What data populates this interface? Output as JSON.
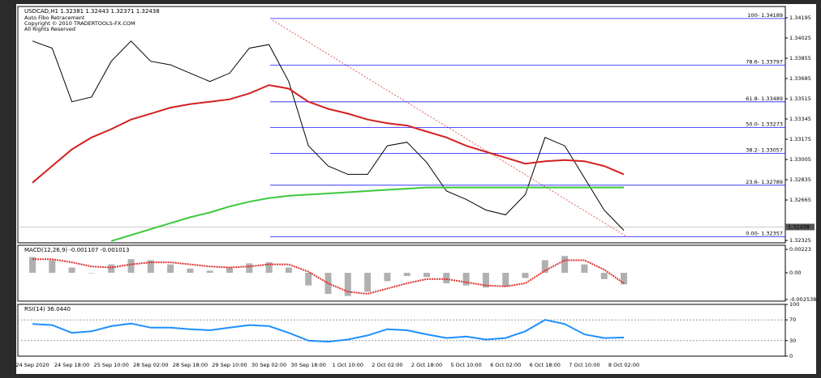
{
  "chart_data": [
    {
      "type": "line",
      "title": "USDCAD,H1  1.32381 1.32443 1.32371 1.32438",
      "annotations": [
        "Auto Fibo Retracement",
        "Copyright © 2010 TRADERTOOLS-FX.COM",
        "All Rights Reserved"
      ],
      "categories": [
        "24 Sep 2020",
        null,
        "24 Sep 18:00",
        null,
        "25 Sep 10:00",
        null,
        "28 Sep 02:00",
        null,
        "28 Sep 18:00",
        null,
        "29 Sep 10:00",
        null,
        "30 Sep 02:00",
        null,
        "30 Sep 18:00",
        null,
        "1 Oct 10:00",
        null,
        "2 Oct 02:00",
        null,
        "2 Oct 18:00",
        null,
        "5 Oct 10:00",
        null,
        "6 Oct 02:00",
        null,
        "6 Oct 18:00",
        null,
        "7 Oct 10:00",
        null,
        "8 Oct 02:00"
      ],
      "series": [
        {
          "color": "#000000",
          "values": [
            1.34,
            1.3394,
            1.3349,
            1.3353,
            1.3383,
            1.34,
            1.3383,
            1.338,
            1.3373,
            1.3366,
            1.3373,
            1.3394,
            1.3397,
            1.3366,
            1.3312,
            1.3295,
            1.3288,
            1.3288,
            1.3312,
            1.3315,
            1.3298,
            1.3274,
            1.3267,
            1.3258,
            1.3254,
            1.3271,
            1.3319,
            1.3312,
            1.3285,
            1.3258,
            1.3241
          ]
        },
        {
          "color": "#d42020",
          "values": [
            1.3281,
            1.3295,
            1.3309,
            1.3319,
            1.3326,
            1.3334,
            1.3339,
            1.3344,
            1.3347,
            1.3349,
            1.3351,
            1.3356,
            1.3363,
            1.336,
            1.3349,
            1.3343,
            1.3339,
            1.3334,
            1.3331,
            1.3329,
            1.3324,
            1.3319,
            1.3312,
            1.3307,
            1.3302,
            1.3297,
            1.3299,
            1.33,
            1.3299,
            1.3295,
            1.3288
          ]
        },
        {
          "color": "#3cc83c",
          "values": [
            null,
            null,
            null,
            null,
            1.3232,
            1.3237,
            1.3242,
            1.3247,
            1.3252,
            1.3256,
            1.3261,
            1.3265,
            1.3268,
            1.327,
            1.3271,
            1.3272,
            1.3273,
            1.3274,
            1.3275,
            1.3276,
            1.3277,
            1.3277,
            1.3277,
            1.3277,
            1.3277,
            1.3277,
            1.3277,
            1.3277,
            1.3277,
            1.3277,
            1.3277
          ]
        }
      ],
      "levels": [
        {
          "value": 1.34189,
          "label": "100- 1.34189"
        },
        {
          "value": 1.33797,
          "label": "78.6- 1.33797"
        },
        {
          "value": 1.33489,
          "label": "61.8- 1.33489"
        },
        {
          "value": 1.33273,
          "label": "50.0- 1.33273"
        },
        {
          "value": 1.33057,
          "label": "38.2- 1.33057"
        },
        {
          "value": 1.32789,
          "label": "23.6- 1.32789"
        },
        {
          "value": 1.32357,
          "label": "0.00- 1.32357"
        }
      ],
      "level_color": "#1a1aff",
      "last_price": 1.32438,
      "ylim": [
        1.32305,
        1.3429
      ],
      "yticks": [
        1.34195,
        1.34025,
        1.33855,
        1.33685,
        1.33515,
        1.33345,
        1.33175,
        1.33005,
        1.32835,
        1.32665,
        1.32325
      ]
    },
    {
      "type": "bar",
      "title": "MACD(12,26,9) -0.001107 -0.001013",
      "series": [
        {
          "color": "#b0b0b0",
          "values": [
            0.0015,
            0.0012,
            0.0005,
            0.0,
            0.0008,
            0.0013,
            0.0012,
            0.0008,
            0.0004,
            0.0002,
            0.0005,
            0.0009,
            0.001,
            0.0005,
            -0.0012,
            -0.002,
            -0.0022,
            -0.0018,
            -0.0008,
            -0.0003,
            -0.0004,
            -0.001,
            -0.0012,
            -0.0014,
            -0.0013,
            -0.0005,
            0.0012,
            0.0016,
            0.0008,
            -0.0006,
            -0.0011
          ]
        },
        {
          "type": "line",
          "color": "#e03030",
          "values": [
            0.0013,
            0.0013,
            0.001,
            0.0006,
            0.0005,
            0.0008,
            0.001,
            0.001,
            0.0008,
            0.0006,
            0.0005,
            0.0006,
            0.0008,
            0.0008,
            0.0001,
            -0.001,
            -0.0018,
            -0.002,
            -0.0015,
            -0.001,
            -0.0006,
            -0.0006,
            -0.0009,
            -0.0012,
            -0.0013,
            -0.001,
            0.0002,
            0.0012,
            0.0012,
            0.0003,
            -0.001
          ]
        }
      ],
      "ylim": [
        -0.00269,
        0.00262
      ],
      "yticks": [
        0.00223,
        {
          "value": 0,
          "label": "0.00"
        },
        -0.002538
      ]
    },
    {
      "type": "line",
      "title": "RSI(14) 36.0440",
      "series": [
        {
          "color": "#1e90ff",
          "values": [
            62,
            60,
            45,
            48,
            58,
            63,
            55,
            55,
            52,
            50,
            55,
            60,
            58,
            45,
            30,
            28,
            32,
            40,
            52,
            50,
            42,
            35,
            38,
            32,
            35,
            48,
            70,
            62,
            42,
            35,
            36
          ]
        }
      ],
      "ylim": [
        0,
        100
      ],
      "yticks": [
        100,
        70,
        30,
        0
      ],
      "levels_dashed": [
        70,
        30
      ]
    }
  ]
}
